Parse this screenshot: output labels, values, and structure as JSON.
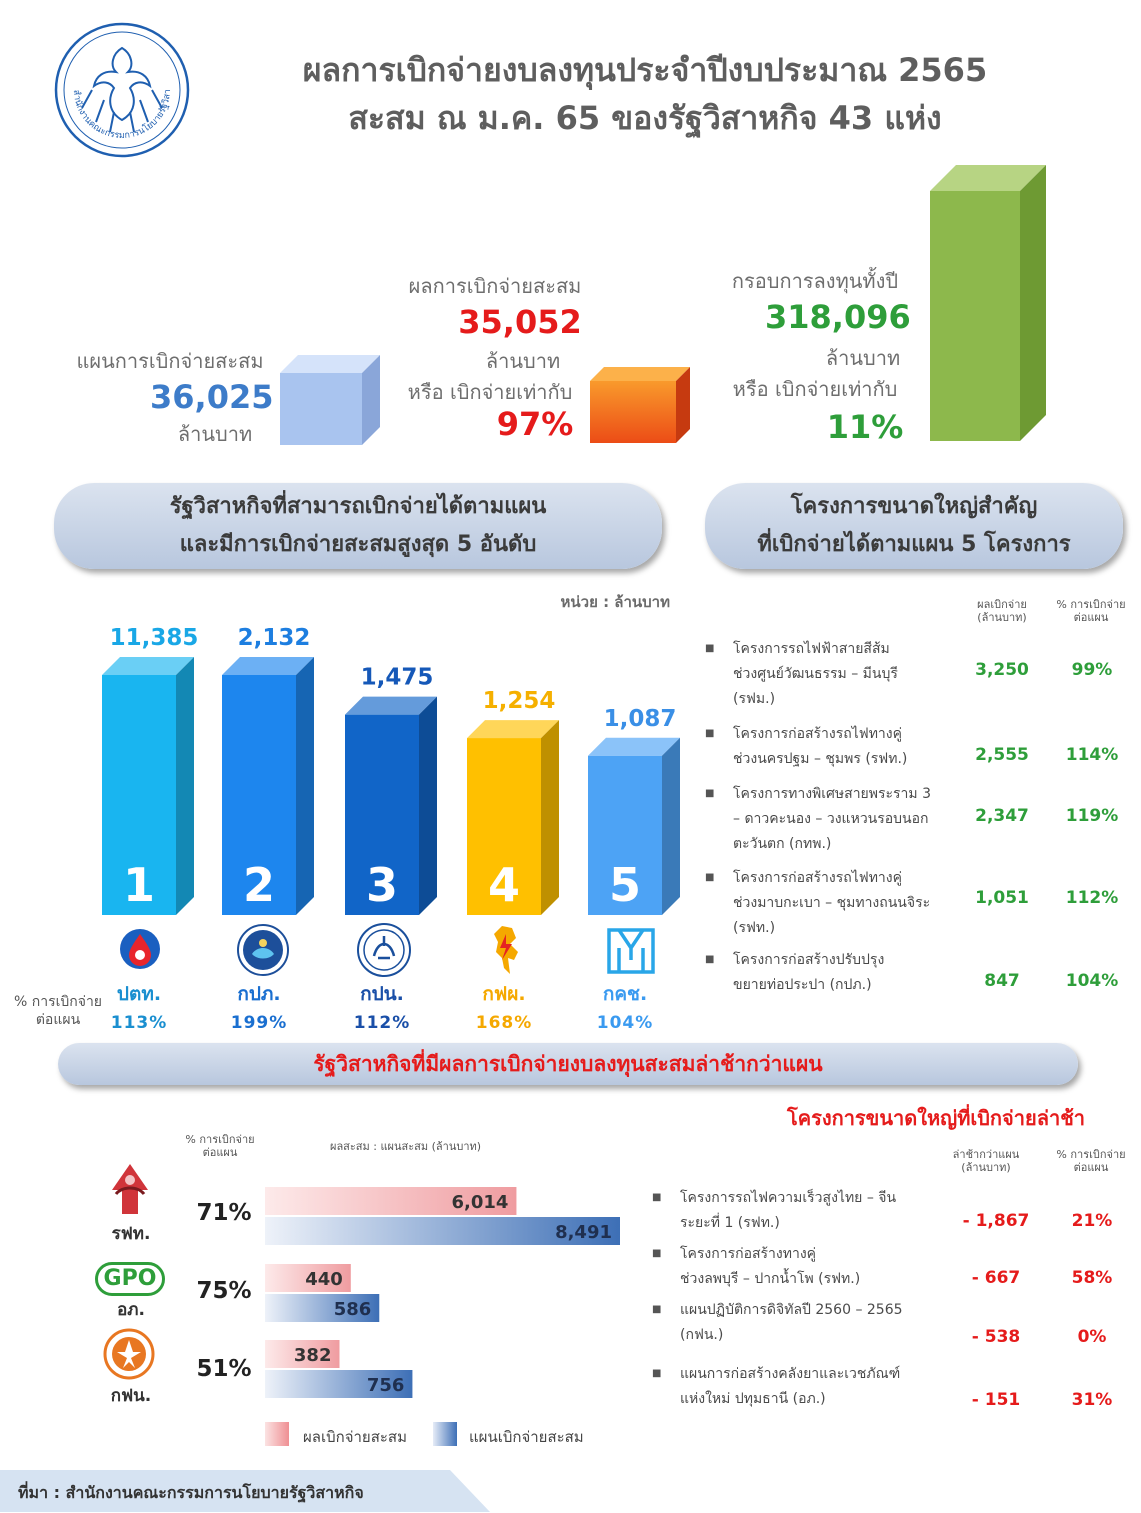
{
  "logo_text": "สำนักงานคณะกรรมการนโยบายรัฐวิสาหกิจ",
  "title_line1": "ผลการเบิกจ่ายงบลงทุนประจำปีงบประมาณ 2565",
  "title_line2": "สะสม ณ ม.ค. 65 ของรัฐวิสาหกิจ 43 แห่ง",
  "summary": {
    "plan": {
      "label": "แผนการเบิกจ่ายสะสม",
      "value": "36,025",
      "unit": "ล้านบาท"
    },
    "actual": {
      "label": "ผลการเบิกจ่ายสะสม",
      "value": "35,052",
      "unit": "ล้านบาท",
      "ratio_label": "หรือ เบิกจ่ายเท่ากับ",
      "ratio": "97%"
    },
    "framework": {
      "label": "กรอบการลงทุนทั้งปี",
      "value": "318,096",
      "unit": "ล้านบาท",
      "ratio_label": "หรือ เบิกจ่ายเท่ากับ",
      "ratio": "11%"
    },
    "colors": {
      "plan": "#a9c4ef",
      "actual": "#f26a21",
      "framework": "#8db84c"
    }
  },
  "top5_heading_line1": "รัฐวิสาหกิจที่สามารถเบิกจ่ายได้ตามแผน",
  "top5_heading_line2": "และมีการเบิกจ่ายสะสมสูงสุด 5 อันดับ",
  "unit_note": "หน่วย : ล้านบาท",
  "pct_label_line1": "% การเบิกจ่าย",
  "pct_label_line2": "ต่อแผน",
  "chart_data": [
    {
      "type": "bar",
      "title": "รัฐวิสาหกิจที่สามารถเบิกจ่ายได้ตามแผน และมีการเบิกจ่ายสะสมสูงสุด 5 อันดับ",
      "unit": "ล้านบาท",
      "categories": [
        "ปตท.",
        "กปภ.",
        "กปน.",
        "กฟผ.",
        "กคช."
      ],
      "ranks": [
        "1",
        "2",
        "3",
        "4",
        "5"
      ],
      "values": [
        11385,
        2132,
        1475,
        1254,
        1087
      ],
      "value_labels": [
        "11,385",
        "2,132",
        "1,475",
        "1,254",
        "1,087"
      ],
      "pct_of_plan": [
        "113%",
        "199%",
        "112%",
        "168%",
        "104%"
      ],
      "colors": [
        "#19b5f0",
        "#1d86ee",
        "#1165c8",
        "#ffc000",
        "#4da3f5"
      ]
    },
    {
      "type": "bar",
      "orientation": "horizontal",
      "title": "รัฐวิสาหกิจที่มีผลการเบิกจ่ายงบลงทุนสะสมล่าช้ากว่าแผน",
      "subtitle": "ผลสะสม : แผนสะสม (ล้านบาท)",
      "categories": [
        "รฟท.",
        "อภ.",
        "กฟน."
      ],
      "pct_of_plan": [
        "71%",
        "75%",
        "51%"
      ],
      "series": [
        {
          "name": "ผลเบิกจ่ายสะสม",
          "values": [
            6014,
            440,
            382
          ],
          "labels": [
            "6,014",
            "440",
            "382"
          ],
          "color": "#f4b9bb"
        },
        {
          "name": "แผนเบิกจ่ายสะสม",
          "values": [
            8491,
            586,
            756
          ],
          "labels": [
            "8,491",
            "586",
            "756"
          ],
          "color": "#3d6fb6"
        }
      ]
    }
  ],
  "top5_table": {
    "heading_line1": "โครงการขนาดใหญ่สำคัญ",
    "heading_line2": "ที่เบิกจ่ายได้ตามแผน 5 โครงการ",
    "col1_line1": "ผลเบิกจ่าย",
    "col1_line2": "(ล้านบาท)",
    "col2_line1": "% การเบิกจ่าย",
    "col2_line2": "ต่อแผน",
    "rows": [
      {
        "lines": [
          "โครงการรถไฟฟ้าสายสีส้ม",
          "ช่วงศูนย์วัฒนธรรม – มีนบุรี",
          "(รฟม.)"
        ],
        "amount": "3,250",
        "pct": "99%"
      },
      {
        "lines": [
          "โครงการก่อสร้างรถไฟทางคู่",
          "ช่วงนครปฐม – ชุมพร (รฟท.)"
        ],
        "amount": "2,555",
        "pct": "114%"
      },
      {
        "lines": [
          "โครงการทางพิเศษสายพระราม 3",
          "– ดาวคะนอง – วงแหวนรอบนอก",
          "ตะวันตก (กทพ.)"
        ],
        "amount": "2,347",
        "pct": "119%"
      },
      {
        "lines": [
          "โครงการก่อสร้างรถไฟทางคู่",
          "ช่วงมาบกะเบา – ชุมทางถนนจิระ",
          "(รฟท.)"
        ],
        "amount": "1,051",
        "pct": "112%"
      },
      {
        "lines": [
          "โครงการก่อสร้างปรับปรุง",
          "ขยายท่อประปา (กปภ.)"
        ],
        "amount": "847",
        "pct": "104%"
      }
    ]
  },
  "delayed": {
    "heading": "รัฐวิสาหกิจที่มีผลการเบิกจ่ายงบลงทุนสะสมล่าช้ากว่าแผน",
    "pct_header_line1": "% การเบิกจ่าย",
    "pct_header_line2": "ต่อแผน",
    "bars_header": "ผลสะสม : แผนสะสม (ล้านบาท)",
    "gpo_logo_text": "GPO",
    "legend_actual": "ผลเบิกจ่ายสะสม",
    "legend_plan": "แผนเบิกจ่ายสะสม"
  },
  "delayed_projects": {
    "heading": "โครงการขนาดใหญ่ที่เบิกจ่ายล่าช้า",
    "col1_line1": "ล่าช้ากว่าแผน",
    "col1_line2": "(ล้านบาท)",
    "col2_line1": "% การเบิกจ่าย",
    "col2_line2": "ต่อแผน",
    "rows": [
      {
        "lines": [
          "โครงการรถไฟความเร็วสูงไทย – จีน",
          "ระยะที่ 1 (รฟท.)"
        ],
        "amount": "- 1,867",
        "pct": "21%"
      },
      {
        "lines": [
          "โครงการก่อสร้างทางคู่",
          "ช่วงลพบุรี – ปากน้ำโพ (รฟท.)"
        ],
        "amount": "- 667",
        "pct": "58%"
      },
      {
        "lines": [
          "แผนปฏิบัติการดิจิทัลปี 2560 – 2565",
          "(กฟน.)"
        ],
        "amount": "- 538",
        "pct": "0%"
      },
      {
        "lines": [
          "แผนการก่อสร้างคลังยาและเวชภัณฑ์",
          "แห่งใหม่ ปทุมธานี (อภ.)"
        ],
        "amount": "- 151",
        "pct": "31%"
      }
    ]
  },
  "source": "ที่มา : สำนักงานคณะกรรมการนโยบายรัฐวิสาหกิจ"
}
